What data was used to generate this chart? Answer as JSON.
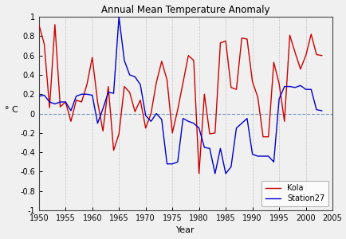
{
  "title": "Annual Mean Temperature Anomaly",
  "xlabel": "Year",
  "ylabel": "° C",
  "xlim": [
    1950,
    2005
  ],
  "ylim": [
    -1.0,
    1.0
  ],
  "yticks": [
    -1.0,
    -0.8,
    -0.6,
    -0.4,
    -0.2,
    0.0,
    0.2,
    0.4,
    0.6,
    0.8,
    1.0
  ],
  "ytick_labels": [
    "-1",
    "-0.8",
    "-0.6",
    "-0.4",
    "-0.2",
    "0",
    "0.2",
    "0.4",
    "0.6",
    "0.8",
    "1"
  ],
  "xticks": [
    1950,
    1955,
    1960,
    1965,
    1970,
    1975,
    1980,
    1985,
    1990,
    1995,
    2000,
    2005
  ],
  "kola_years": [
    1950,
    1951,
    1952,
    1953,
    1954,
    1955,
    1956,
    1957,
    1958,
    1959,
    1960,
    1961,
    1962,
    1963,
    1964,
    1965,
    1966,
    1967,
    1968,
    1969,
    1970,
    1971,
    1972,
    1973,
    1974,
    1975,
    1976,
    1977,
    1978,
    1979,
    1980,
    1981,
    1982,
    1983,
    1984,
    1985,
    1986,
    1987,
    1988,
    1989,
    1990,
    1991,
    1992,
    1993,
    1994,
    1995,
    1996,
    1997,
    1998,
    1999,
    2000,
    2001,
    2002,
    2003
  ],
  "kola_values": [
    0.92,
    0.72,
    0.06,
    0.92,
    0.07,
    0.12,
    -0.08,
    0.14,
    0.12,
    0.3,
    0.58,
    0.12,
    -0.18,
    0.28,
    -0.38,
    -0.21,
    0.28,
    0.22,
    0.02,
    0.14,
    -0.15,
    0.0,
    0.32,
    0.54,
    0.35,
    -0.2,
    0.04,
    0.32,
    0.6,
    0.55,
    -0.62,
    0.2,
    -0.21,
    -0.2,
    0.73,
    0.75,
    0.27,
    0.25,
    0.78,
    0.77,
    0.33,
    0.17,
    -0.24,
    -0.24,
    0.53,
    0.31,
    -0.08,
    0.81,
    0.63,
    0.46,
    0.6,
    0.82,
    0.61,
    0.6
  ],
  "station27_years": [
    1950,
    1951,
    1952,
    1953,
    1954,
    1955,
    1956,
    1957,
    1958,
    1959,
    1960,
    1961,
    1962,
    1963,
    1964,
    1965,
    1966,
    1967,
    1968,
    1969,
    1970,
    1971,
    1972,
    1973,
    1974,
    1975,
    1976,
    1977,
    1978,
    1979,
    1980,
    1981,
    1982,
    1983,
    1984,
    1985,
    1986,
    1987,
    1988,
    1989,
    1990,
    1991,
    1992,
    1993,
    1994,
    1995,
    1996,
    1997,
    1998,
    1999,
    2000,
    2001,
    2002,
    2003
  ],
  "station27_values": [
    0.18,
    0.19,
    0.12,
    0.1,
    0.12,
    0.12,
    0.03,
    0.18,
    0.2,
    0.2,
    0.19,
    -0.1,
    0.05,
    0.22,
    0.21,
    1.0,
    0.55,
    0.4,
    0.38,
    0.3,
    -0.02,
    -0.08,
    0.0,
    -0.06,
    -0.52,
    -0.52,
    -0.5,
    -0.05,
    -0.08,
    -0.1,
    -0.15,
    -0.35,
    -0.36,
    -0.62,
    -0.36,
    -0.62,
    -0.55,
    -0.15,
    -0.1,
    -0.05,
    -0.42,
    -0.44,
    -0.44,
    -0.44,
    -0.5,
    0.15,
    0.28,
    0.28,
    0.27,
    0.29,
    0.25,
    0.25,
    0.04,
    0.03
  ],
  "kola_color": "#cc0000",
  "station27_color": "#0000cc",
  "bg_color": "#f0f0f0",
  "axes_bg_color": "#f0f0f0",
  "grid_color": "#aaaaaa",
  "zeroline_color": "#7799bb",
  "legend_labels": [
    "Kola",
    "Station27"
  ],
  "figsize": [
    4.35,
    3.0
  ],
  "dpi": 100
}
